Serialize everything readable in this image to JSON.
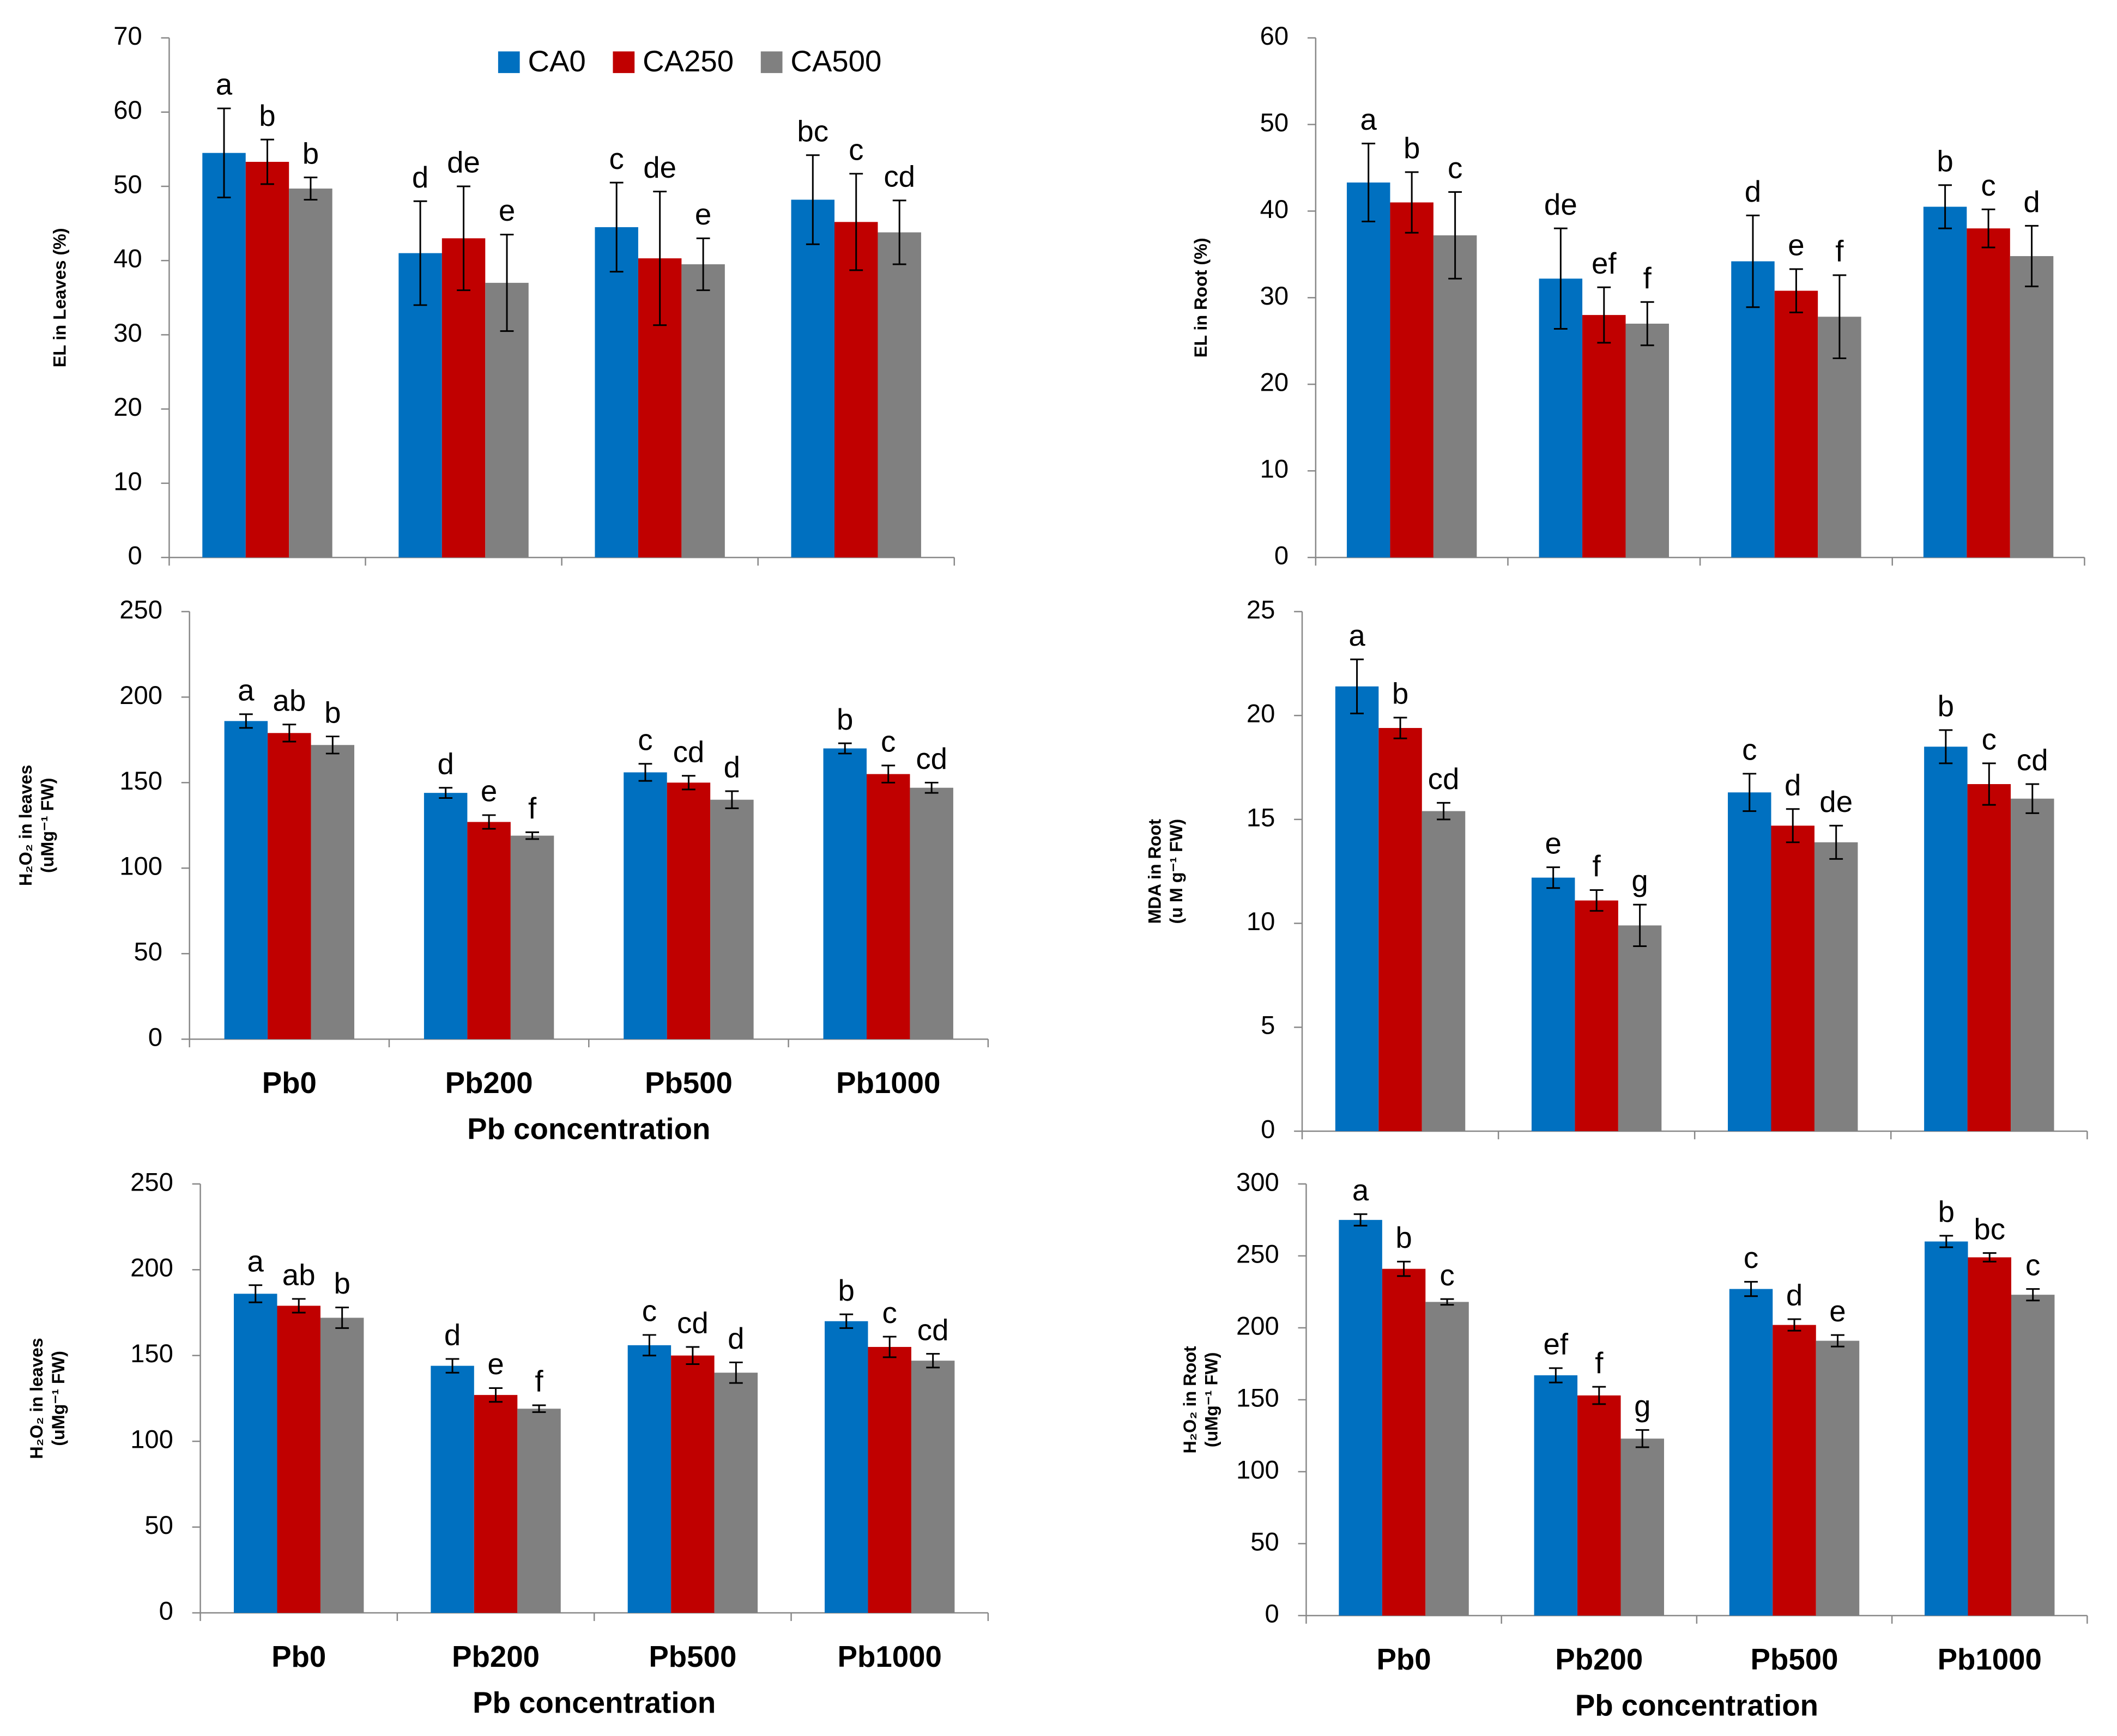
{
  "chart_data": [
    {
      "type": "bar",
      "ylabel": [
        "EL in Leaves (%)"
      ],
      "categories": [
        null,
        null,
        null,
        null
      ],
      "ylim": [
        0,
        70
      ],
      "yticks": [
        0,
        10,
        20,
        30,
        40,
        50,
        60,
        70
      ],
      "grid": false,
      "legend": "top",
      "series": [
        {
          "name": "CA0",
          "color": "#0070c0",
          "values": [
            54.5,
            41,
            44.5,
            48.2
          ],
          "errors": [
            6,
            7,
            6,
            6
          ],
          "labels": [
            "a",
            "d",
            "c",
            "bc"
          ]
        },
        {
          "name": "CA250",
          "color": "#c00000",
          "values": [
            53.3,
            43,
            40.3,
            45.2
          ],
          "errors": [
            3,
            7,
            9,
            6.5
          ],
          "labels": [
            "b",
            "de",
            "de",
            "c"
          ]
        },
        {
          "name": "CA500",
          "color": "#808080",
          "values": [
            49.7,
            37,
            39.5,
            43.8
          ],
          "errors": [
            1.5,
            6.5,
            3.5,
            4.3
          ],
          "labels": [
            "b",
            "e",
            "e",
            "cd"
          ]
        }
      ]
    },
    {
      "type": "bar",
      "ylabel": [
        "EL in Root (%)"
      ],
      "categories": [
        null,
        null,
        null,
        null
      ],
      "ylim": [
        0,
        60
      ],
      "yticks": [
        0,
        10,
        20,
        30,
        40,
        50,
        60
      ],
      "grid": false,
      "series": [
        {
          "color": "#0070c0",
          "values": [
            43.3,
            32.2,
            34.2,
            40.5
          ],
          "errors": [
            4.5,
            5.8,
            5.3,
            2.5
          ],
          "labels": [
            "a",
            "de",
            "d",
            "b"
          ]
        },
        {
          "color": "#c00000",
          "values": [
            41,
            28,
            30.8,
            38
          ],
          "errors": [
            3.5,
            3.2,
            2.5,
            2.2
          ],
          "labels": [
            "b",
            "ef",
            "e",
            "c"
          ]
        },
        {
          "color": "#808080",
          "values": [
            37.2,
            27,
            27.8,
            34.8
          ],
          "errors": [
            5,
            2.5,
            4.8,
            3.5
          ],
          "labels": [
            "c",
            "f",
            "f",
            "d"
          ]
        }
      ]
    },
    {
      "type": "bar",
      "ylabel": [
        "H₂O₂ in leaves",
        "(uMg⁻¹ FW)"
      ],
      "categories": [
        "Pb0",
        "Pb200",
        "Pb500",
        "Pb1000"
      ],
      "xlabel": "Pb concentration",
      "ylim": [
        0,
        250
      ],
      "yticks": [
        0,
        50,
        100,
        150,
        200,
        250
      ],
      "grid": false,
      "series": [
        {
          "color": "#0070c0",
          "values": [
            186,
            144,
            156,
            170
          ],
          "errors": [
            4,
            3,
            5,
            3
          ],
          "labels": [
            "a",
            "d",
            "c",
            "b"
          ]
        },
        {
          "color": "#c00000",
          "values": [
            179,
            127,
            150,
            155
          ],
          "errors": [
            5,
            4,
            4,
            5
          ],
          "labels": [
            "ab",
            "e",
            "cd",
            "c"
          ]
        },
        {
          "color": "#808080",
          "values": [
            172,
            119,
            140,
            147
          ],
          "errors": [
            5,
            2,
            5,
            3
          ],
          "labels": [
            "b",
            "f",
            "d",
            "cd"
          ]
        }
      ]
    },
    {
      "type": "bar",
      "ylabel": [
        "MDA in Root",
        "(u M g⁻¹ FW)"
      ],
      "categories": [
        null,
        null,
        null,
        null
      ],
      "ylim": [
        0,
        25
      ],
      "yticks": [
        0,
        5,
        10,
        15,
        20,
        25
      ],
      "grid": false,
      "series": [
        {
          "color": "#0070c0",
          "values": [
            21.4,
            12.2,
            16.3,
            18.5
          ],
          "errors": [
            1.3,
            0.5,
            0.9,
            0.8
          ],
          "labels": [
            "a",
            "e",
            "c",
            "b"
          ]
        },
        {
          "color": "#c00000",
          "values": [
            19.4,
            11.1,
            14.7,
            16.7
          ],
          "errors": [
            0.5,
            0.5,
            0.8,
            1
          ],
          "labels": [
            "b",
            "f",
            "d",
            "c"
          ]
        },
        {
          "color": "#808080",
          "values": [
            15.4,
            9.9,
            13.9,
            16
          ],
          "errors": [
            0.4,
            1,
            0.8,
            0.7
          ],
          "labels": [
            "cd",
            "g",
            "de",
            "cd"
          ]
        }
      ]
    },
    {
      "type": "bar",
      "ylabel": [
        "H₂O₂ in leaves",
        "(uMg⁻¹ FW)"
      ],
      "categories": [
        "Pb0",
        "Pb200",
        "Pb500",
        "Pb1000"
      ],
      "xlabel": "Pb concentration",
      "ylim": [
        0,
        250
      ],
      "yticks": [
        0,
        50,
        100,
        150,
        200,
        250
      ],
      "grid": false,
      "series": [
        {
          "color": "#0070c0",
          "values": [
            186,
            144,
            156,
            170
          ],
          "errors": [
            5,
            4,
            6,
            4
          ],
          "labels": [
            "a",
            "d",
            "c",
            "b"
          ]
        },
        {
          "color": "#c00000",
          "values": [
            179,
            127,
            150,
            155
          ],
          "errors": [
            4,
            4,
            5,
            6
          ],
          "labels": [
            "ab",
            "e",
            "cd",
            "c"
          ]
        },
        {
          "color": "#808080",
          "values": [
            172,
            119,
            140,
            147
          ],
          "errors": [
            6,
            2,
            6,
            4
          ],
          "labels": [
            "b",
            "f",
            "d",
            "cd"
          ]
        }
      ]
    },
    {
      "type": "bar",
      "ylabel": [
        "H₂O₂ in Root",
        "(uMg⁻¹ FW)"
      ],
      "categories": [
        "Pb0",
        "Pb200",
        "Pb500",
        "Pb1000"
      ],
      "xlabel": "Pb concentration",
      "ylim": [
        0,
        300
      ],
      "yticks": [
        0,
        50,
        100,
        150,
        200,
        250,
        300
      ],
      "grid": false,
      "series": [
        {
          "color": "#0070c0",
          "values": [
            275,
            167,
            227,
            260
          ],
          "errors": [
            4,
            5,
            5,
            4
          ],
          "labels": [
            "a",
            "ef",
            "c",
            "b"
          ]
        },
        {
          "color": "#c00000",
          "values": [
            241,
            153,
            202,
            249
          ],
          "errors": [
            5,
            6,
            4,
            3
          ],
          "labels": [
            "b",
            "f",
            "d",
            "bc"
          ]
        },
        {
          "color": "#808080",
          "values": [
            218,
            123,
            191,
            223
          ],
          "errors": [
            2,
            6,
            4,
            4
          ],
          "labels": [
            "c",
            "g",
            "e",
            "c"
          ]
        }
      ]
    }
  ]
}
